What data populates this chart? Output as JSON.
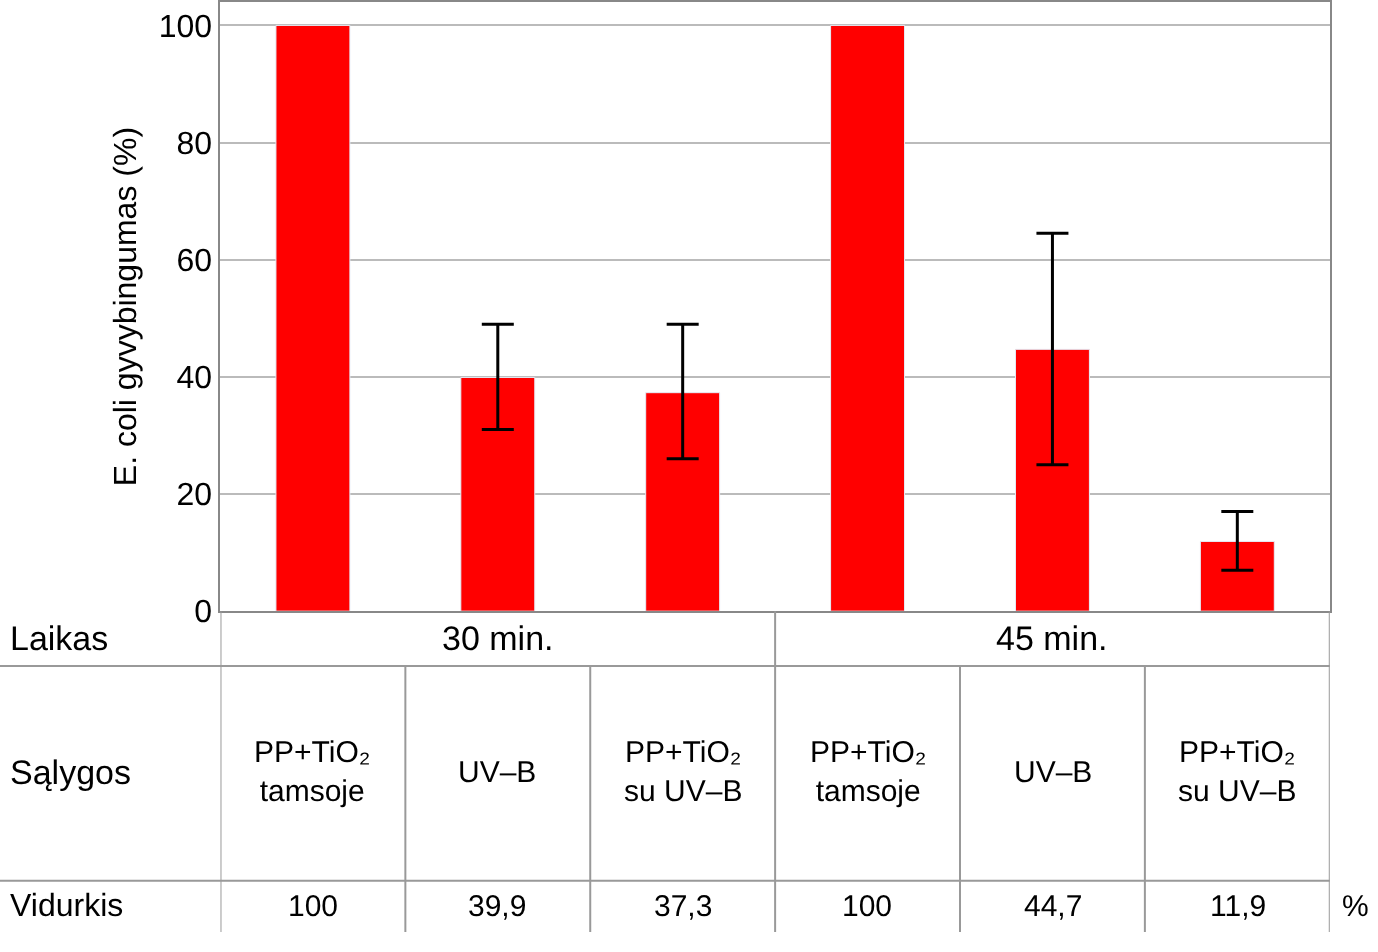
{
  "chart_data": {
    "type": "bar",
    "ylabel": "E. coli gyvybingumas (%)",
    "categories": [
      "PP+TiO₂ tamsoje",
      "UV–B",
      "PP+TiO₂ su UV–B",
      "PP+TiO₂ tamsoje",
      "UV–B",
      "PP+TiO₂ su UV–B"
    ],
    "values": [
      100,
      39.9,
      37.3,
      100,
      44.7,
      11.9
    ],
    "color": "#ff0000",
    "errors": [
      null,
      [
        31,
        49
      ],
      [
        26,
        49
      ],
      null,
      [
        25,
        64.5
      ],
      [
        7,
        17
      ]
    ],
    "value_labels": [
      "100",
      "39,9",
      "37,3",
      "100",
      "44,7",
      "11,9"
    ],
    "ylim": [
      0,
      104
    ],
    "yticks": [
      0,
      20,
      40,
      60,
      80,
      100
    ],
    "grid": "y",
    "annotations": [
      "Laikas",
      "30 min.",
      "45 min.",
      "Sąlygos",
      "Vidurkis",
      "%"
    ]
  }
}
